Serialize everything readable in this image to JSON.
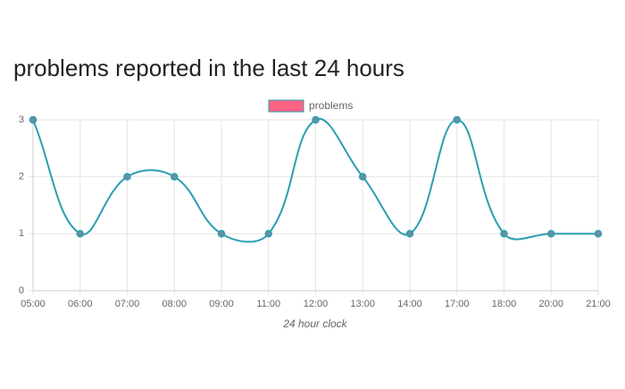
{
  "chart_data": {
    "type": "line",
    "title": "problems reported in the last 24 hours",
    "x_label": "24 hour clock",
    "categories": [
      "05:00",
      "06:00",
      "07:00",
      "08:00",
      "09:00",
      "11:00",
      "12:00",
      "13:00",
      "14:00",
      "17:00",
      "18:00",
      "20:00",
      "21:00"
    ],
    "series": [
      {
        "name": "problems",
        "color": "#2a9fb0",
        "point_color": "#6b8e9f",
        "legend_color": "#ff6384",
        "values": [
          3,
          1,
          2,
          2,
          1,
          1,
          3,
          2,
          1,
          3,
          1,
          1,
          1
        ]
      }
    ],
    "ylim": [
      0,
      3
    ],
    "yticks": [
      0,
      1,
      2,
      3
    ],
    "grid": true,
    "legend": "top"
  }
}
